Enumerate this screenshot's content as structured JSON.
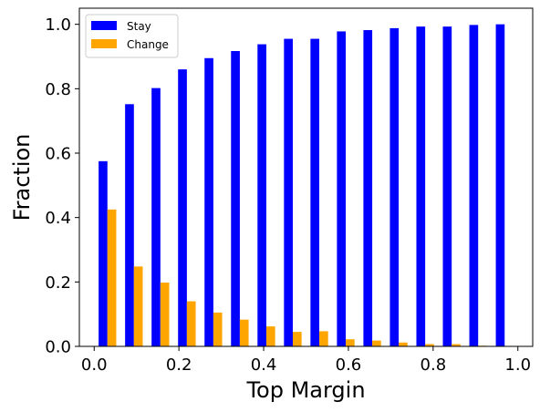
{
  "chart_data": {
    "type": "bar",
    "xlabel": "Top Margin",
    "ylabel": "Fraction",
    "xlim": [
      -0.035,
      1.035
    ],
    "ylim": [
      0,
      1.05
    ],
    "x_ticks": [
      "0.0",
      "0.2",
      "0.4",
      "0.6",
      "0.8",
      "1.0"
    ],
    "y_ticks": [
      "0.0",
      "0.2",
      "0.4",
      "0.6",
      "0.8",
      "1.0"
    ],
    "bin_width": 0.0625,
    "bar_width": 0.0208,
    "bin_centers": [
      0.03125,
      0.09375,
      0.15625,
      0.21875,
      0.28125,
      0.34375,
      0.40625,
      0.46875,
      0.53125,
      0.59375,
      0.65625,
      0.71875,
      0.78125,
      0.84375,
      0.90625,
      0.96875
    ],
    "legend_position": "upper-left",
    "grid": false,
    "series": [
      {
        "name": "Stay",
        "color": "#0000ff",
        "values": [
          0.575,
          0.752,
          0.802,
          0.86,
          0.895,
          0.917,
          0.938,
          0.955,
          0.955,
          0.978,
          0.982,
          0.988,
          0.993,
          0.993,
          0.998,
          1.0
        ]
      },
      {
        "name": "Change",
        "color": "#ffa500",
        "values": [
          0.425,
          0.248,
          0.198,
          0.14,
          0.105,
          0.083,
          0.062,
          0.045,
          0.047,
          0.022,
          0.018,
          0.012,
          0.007,
          0.007,
          0.002,
          0.0
        ]
      }
    ]
  }
}
